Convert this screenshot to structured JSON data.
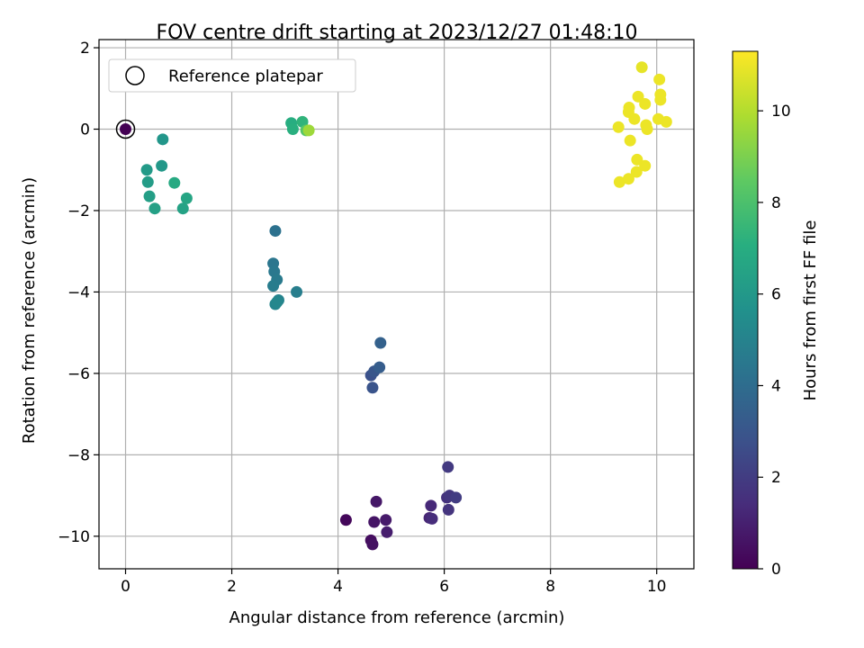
{
  "chart_data": {
    "type": "scatter",
    "title": "FOV centre drift starting at 2023/12/27 01:48:10",
    "xlabel": "Angular distance from reference (arcmin)",
    "ylabel": "Rotation from reference (arcmin)",
    "xlim": [
      -0.5,
      10.7
    ],
    "ylim": [
      -10.8,
      2.2
    ],
    "x_ticks": [
      0,
      2,
      4,
      6,
      8,
      10
    ],
    "y_ticks": [
      2,
      0,
      -2,
      -4,
      -6,
      -8,
      -10
    ],
    "x_tick_labels": [
      "0",
      "2",
      "4",
      "6",
      "8",
      "10"
    ],
    "y_tick_labels": [
      "2",
      "0",
      "−2",
      "−4",
      "−6",
      "−8",
      "−10"
    ],
    "grid": true,
    "legend": {
      "position": "top-left",
      "entries": [
        "Reference platepar"
      ]
    },
    "colorbar": {
      "label": "Hours from first FF file",
      "colormap": "viridis",
      "range": [
        0,
        11.3
      ],
      "ticks": [
        0,
        2,
        4,
        6,
        8,
        10
      ],
      "tick_labels": [
        "0",
        "2",
        "4",
        "6",
        "8",
        "10"
      ]
    },
    "reference_point": {
      "x": 0,
      "y": 0
    },
    "series": [
      {
        "points": [
          {
            "x": 0.0,
            "y": 0.0,
            "t": 0.0
          },
          {
            "x": 4.15,
            "y": -9.6,
            "t": 0.2
          },
          {
            "x": 4.62,
            "y": -10.1,
            "t": 0.4
          },
          {
            "x": 4.65,
            "y": -10.2,
            "t": 0.5
          },
          {
            "x": 4.68,
            "y": -9.65,
            "t": 0.6
          },
          {
            "x": 4.72,
            "y": -9.15,
            "t": 0.7
          },
          {
            "x": 4.9,
            "y": -9.6,
            "t": 0.8
          },
          {
            "x": 4.92,
            "y": -9.9,
            "t": 0.9
          },
          {
            "x": 5.72,
            "y": -9.55,
            "t": 1.2
          },
          {
            "x": 5.75,
            "y": -9.25,
            "t": 1.3
          },
          {
            "x": 5.77,
            "y": -9.57,
            "t": 1.4
          },
          {
            "x": 6.05,
            "y": -9.05,
            "t": 1.6
          },
          {
            "x": 6.08,
            "y": -9.35,
            "t": 1.7
          },
          {
            "x": 6.1,
            "y": -9.0,
            "t": 1.8
          },
          {
            "x": 6.07,
            "y": -8.3,
            "t": 1.9
          },
          {
            "x": 6.22,
            "y": -9.05,
            "t": 2.0
          },
          {
            "x": 4.62,
            "y": -6.05,
            "t": 2.8
          },
          {
            "x": 4.65,
            "y": -6.35,
            "t": 2.9
          },
          {
            "x": 4.68,
            "y": -5.95,
            "t": 3.0
          },
          {
            "x": 4.78,
            "y": -5.85,
            "t": 3.3
          },
          {
            "x": 4.8,
            "y": -5.25,
            "t": 3.5
          },
          {
            "x": 2.82,
            "y": -2.5,
            "t": 4.2
          },
          {
            "x": 2.78,
            "y": -3.3,
            "t": 4.4
          },
          {
            "x": 2.8,
            "y": -3.5,
            "t": 4.5
          },
          {
            "x": 2.85,
            "y": -3.7,
            "t": 4.6
          },
          {
            "x": 2.78,
            "y": -3.85,
            "t": 4.7
          },
          {
            "x": 3.22,
            "y": -4.0,
            "t": 4.8
          },
          {
            "x": 2.88,
            "y": -4.2,
            "t": 5.0
          },
          {
            "x": 2.82,
            "y": -4.3,
            "t": 5.1
          },
          {
            "x": 2.85,
            "y": -4.25,
            "t": 5.2
          },
          {
            "x": 0.7,
            "y": -0.25,
            "t": 5.9
          },
          {
            "x": 0.68,
            "y": -0.9,
            "t": 6.0
          },
          {
            "x": 0.4,
            "y": -1.0,
            "t": 6.1
          },
          {
            "x": 0.42,
            "y": -1.3,
            "t": 6.2
          },
          {
            "x": 0.45,
            "y": -1.65,
            "t": 6.3
          },
          {
            "x": 0.55,
            "y": -1.95,
            "t": 6.4
          },
          {
            "x": 1.08,
            "y": -1.95,
            "t": 6.5
          },
          {
            "x": 1.15,
            "y": -1.7,
            "t": 6.6
          },
          {
            "x": 0.92,
            "y": -1.32,
            "t": 6.8
          },
          {
            "x": 3.12,
            "y": 0.15,
            "t": 7.0
          },
          {
            "x": 3.15,
            "y": 0.0,
            "t": 7.1
          },
          {
            "x": 3.33,
            "y": 0.18,
            "t": 7.3
          },
          {
            "x": 3.4,
            "y": -0.03,
            "t": 8.3
          },
          {
            "x": 3.45,
            "y": -0.03,
            "t": 9.6
          },
          {
            "x": 9.3,
            "y": -1.3,
            "t": 11.0
          },
          {
            "x": 9.47,
            "y": -1.22,
            "t": 11.0
          },
          {
            "x": 9.62,
            "y": -1.05,
            "t": 11.0
          },
          {
            "x": 9.63,
            "y": -0.75,
            "t": 11.0
          },
          {
            "x": 9.78,
            "y": -0.9,
            "t": 11.0
          },
          {
            "x": 9.5,
            "y": -0.28,
            "t": 11.0
          },
          {
            "x": 9.28,
            "y": 0.05,
            "t": 11.0
          },
          {
            "x": 9.47,
            "y": 0.42,
            "t": 11.0
          },
          {
            "x": 9.48,
            "y": 0.53,
            "t": 11.0
          },
          {
            "x": 9.58,
            "y": 0.25,
            "t": 11.0
          },
          {
            "x": 9.65,
            "y": 0.8,
            "t": 11.0
          },
          {
            "x": 9.78,
            "y": 0.62,
            "t": 11.0
          },
          {
            "x": 9.8,
            "y": 0.1,
            "t": 11.0
          },
          {
            "x": 9.82,
            "y": 0.0,
            "t": 11.0
          },
          {
            "x": 9.72,
            "y": 1.52,
            "t": 10.9
          },
          {
            "x": 10.05,
            "y": 1.22,
            "t": 11.0
          },
          {
            "x": 10.07,
            "y": 0.85,
            "t": 11.0
          },
          {
            "x": 10.07,
            "y": 0.72,
            "t": 11.0
          },
          {
            "x": 10.03,
            "y": 0.25,
            "t": 11.0
          },
          {
            "x": 10.18,
            "y": 0.18,
            "t": 11.0
          }
        ]
      }
    ]
  }
}
